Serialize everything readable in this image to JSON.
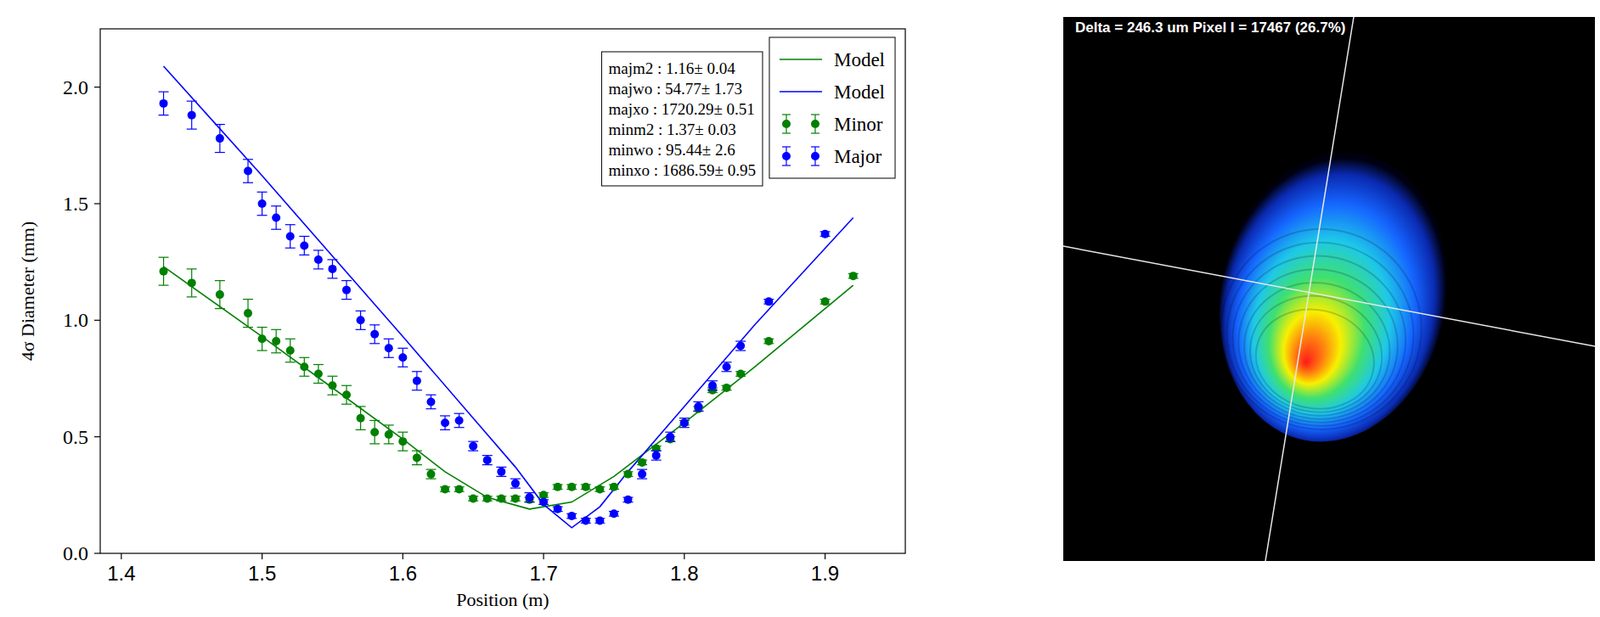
{
  "chart_data": {
    "type": "scatter",
    "x_label": "Position (m)",
    "y_label": "4σ Diameter (mm)",
    "xlim": [
      1.385,
      1.957
    ],
    "ylim": [
      0,
      2.25
    ],
    "xticks": [
      1.4,
      1.5,
      1.6,
      1.7,
      1.8,
      1.9
    ],
    "yticks": [
      {
        "value": 0,
        "label": "0.0"
      },
      {
        "value": 0.5,
        "label": "0.5"
      },
      {
        "value": 1,
        "label": "1.0"
      },
      {
        "value": 1.5,
        "label": "1.5"
      },
      {
        "value": 2,
        "label": "2.0"
      }
    ],
    "grid": false,
    "legend": "upper right",
    "annotations": [
      "majm2 : 1.16± 0.04",
      "majwo : 54.77± 1.73",
      "majxo : 1720.29± 0.51",
      "minm2 : 1.37± 0.03",
      "minwo : 95.44± 2.6",
      "minxo : 1686.59± 0.95"
    ],
    "series": [
      {
        "name": "Model",
        "type": "line",
        "line_style": "solid",
        "color": "#008000",
        "x": [
          1.43,
          1.5,
          1.55,
          1.6,
          1.63,
          1.66,
          1.69,
          1.72,
          1.75,
          1.8,
          1.85,
          1.92
        ],
        "values": [
          1.23,
          0.93,
          0.71,
          0.49,
          0.35,
          0.24,
          0.19,
          0.22,
          0.33,
          0.56,
          0.8,
          1.15
        ]
      },
      {
        "name": "Model",
        "type": "line",
        "line_style": "solid",
        "color": "#0000ff",
        "x": [
          1.43,
          1.5,
          1.6,
          1.65,
          1.68,
          1.7,
          1.72,
          1.74,
          1.76,
          1.8,
          1.85,
          1.92
        ],
        "values": [
          2.09,
          1.62,
          0.93,
          0.58,
          0.37,
          0.21,
          0.11,
          0.2,
          0.35,
          0.63,
          0.98,
          1.44
        ]
      },
      {
        "name": "Minor",
        "type": "scatter",
        "marker": "circle",
        "color": "#008000",
        "x": [
          1.43,
          1.45,
          1.47,
          1.49,
          1.5,
          1.51,
          1.52,
          1.53,
          1.54,
          1.55,
          1.56,
          1.57,
          1.58,
          1.59,
          1.6,
          1.61,
          1.62,
          1.63,
          1.64,
          1.65,
          1.66,
          1.67,
          1.68,
          1.69,
          1.7,
          1.71,
          1.72,
          1.73,
          1.74,
          1.75,
          1.76,
          1.77,
          1.78,
          1.79,
          1.8,
          1.81,
          1.82,
          1.83,
          1.84,
          1.86,
          1.9,
          1.92
        ],
        "values": [
          1.21,
          1.16,
          1.11,
          1.03,
          0.92,
          0.91,
          0.87,
          0.8,
          0.77,
          0.72,
          0.68,
          0.58,
          0.52,
          0.51,
          0.48,
          0.41,
          0.34,
          0.275,
          0.275,
          0.235,
          0.235,
          0.235,
          0.235,
          0.23,
          0.25,
          0.285,
          0.285,
          0.285,
          0.275,
          0.285,
          0.34,
          0.39,
          0.45,
          0.49,
          0.56,
          0.62,
          0.7,
          0.71,
          0.77,
          0.91,
          1.08,
          1.19
        ],
        "errors": [
          0.06,
          0.06,
          0.06,
          0.06,
          0.05,
          0.05,
          0.05,
          0.04,
          0.04,
          0.04,
          0.04,
          0.05,
          0.05,
          0.04,
          0.04,
          0.03,
          0.02,
          0.01,
          0.01,
          0.01,
          0.01,
          0.01,
          0.01,
          0.01,
          0.01,
          0.01,
          0.01,
          0.01,
          0.01,
          0.01,
          0.01,
          0.01,
          0.01,
          0.01,
          0.01,
          0.01,
          0.01,
          0.01,
          0.01,
          0.01,
          0.01,
          0.01
        ]
      },
      {
        "name": "Major",
        "type": "scatter",
        "marker": "circle",
        "color": "#0000ff",
        "x": [
          1.43,
          1.45,
          1.47,
          1.49,
          1.5,
          1.51,
          1.52,
          1.53,
          1.54,
          1.55,
          1.56,
          1.57,
          1.58,
          1.59,
          1.6,
          1.61,
          1.62,
          1.63,
          1.64,
          1.65,
          1.66,
          1.67,
          1.68,
          1.69,
          1.7,
          1.71,
          1.72,
          1.73,
          1.74,
          1.75,
          1.76,
          1.77,
          1.78,
          1.79,
          1.8,
          1.81,
          1.82,
          1.83,
          1.84,
          1.86,
          1.9,
          1.92
        ],
        "values": [
          1.93,
          1.88,
          1.78,
          1.64,
          1.5,
          1.44,
          1.36,
          1.32,
          1.26,
          1.22,
          1.13,
          1.0,
          0.94,
          0.88,
          0.84,
          0.74,
          0.65,
          0.56,
          0.57,
          0.46,
          0.4,
          0.35,
          0.3,
          0.24,
          0.22,
          0.19,
          0.16,
          0.14,
          0.14,
          0.17,
          0.23,
          0.34,
          0.42,
          0.5,
          0.56,
          0.63,
          0.72,
          0.8,
          0.89,
          1.08,
          1.37,
          null
        ],
        "errors": [
          0.05,
          0.06,
          0.06,
          0.05,
          0.05,
          0.05,
          0.05,
          0.04,
          0.04,
          0.04,
          0.04,
          0.04,
          0.04,
          0.04,
          0.04,
          0.04,
          0.03,
          0.03,
          0.03,
          0.02,
          0.02,
          0.02,
          0.02,
          0.02,
          0.01,
          0.01,
          0.01,
          0.01,
          0.01,
          0.01,
          0.01,
          0.02,
          0.02,
          0.02,
          0.02,
          0.02,
          0.02,
          0.02,
          0.02,
          0.01,
          0.01,
          null
        ]
      }
    ]
  },
  "beam_image": {
    "caption": "Delta = 246.3 um Pixel I = 17467 (26.7%)"
  }
}
